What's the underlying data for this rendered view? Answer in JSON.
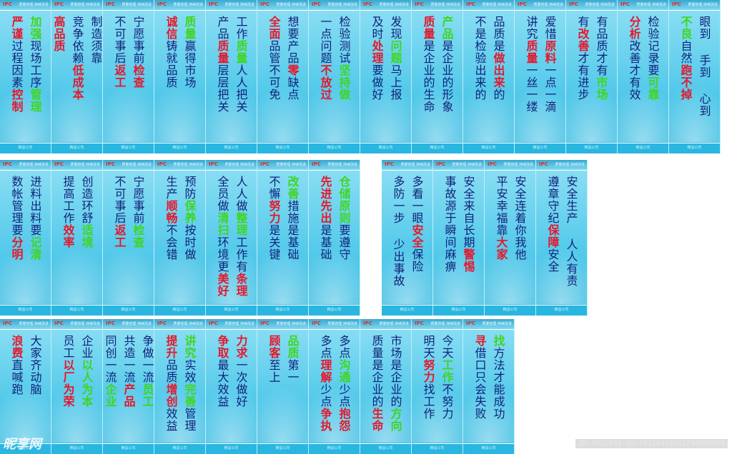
{
  "logo_text": "IPC",
  "header_tag": "质量管理 持续改进",
  "footer_text": "精益公司",
  "colors": {
    "panel_top": "#8fe0f4",
    "panel_bottom": "#3fbde2",
    "text": "#13217a",
    "red": "#e6172c",
    "green": "#3fd61e"
  },
  "rows": [
    {
      "panels": [
        {
          "cols": [
            [
              [
                "加强",
                "g"
              ],
              [
                "现场工序",
                ""
              ],
              [
                "管理",
                "g"
              ]
            ],
            [
              [
                "严谨",
                "r"
              ],
              [
                "过程因素",
                ""
              ],
              [
                "控制",
                "r"
              ]
            ]
          ]
        },
        {
          "cols": [
            [
              [
                "制造须靠",
                ""
              ]
            ],
            [
              [
                "竞争依赖",
                ""
              ],
              [
                "低成本",
                "r"
              ]
            ],
            [
              [
                "",
                ""
              ],
              [
                "高品质",
                "r"
              ]
            ]
          ]
        },
        {
          "cols": [
            [
              [
                "宁愿事前",
                ""
              ],
              [
                "检查",
                "r"
              ]
            ],
            [
              [
                "不可事后",
                ""
              ],
              [
                "返工",
                "r"
              ]
            ]
          ]
        },
        {
          "cols": [
            [
              [
                "质量",
                "g"
              ],
              [
                "赢得市场",
                ""
              ]
            ],
            [
              [
                "诚信",
                "r"
              ],
              [
                "铸就品质",
                ""
              ]
            ]
          ]
        },
        {
          "cols": [
            [
              [
                "工作",
                ""
              ],
              [
                "质量",
                "g"
              ],
              [
                "人人把关",
                ""
              ]
            ],
            [
              [
                "产品",
                ""
              ],
              [
                "质量",
                "r"
              ],
              [
                "层层把关",
                ""
              ]
            ]
          ]
        },
        {
          "cols": [
            [
              [
                "想要产品",
                ""
              ],
              [
                "零",
                "r"
              ],
              [
                "缺点",
                ""
              ]
            ],
            [
              [
                "全面",
                "r"
              ],
              [
                "品管不可免",
                ""
              ]
            ]
          ]
        },
        {
          "cols": [
            [
              [
                "检验测试",
                ""
              ],
              [
                "坚持做",
                "g"
              ]
            ],
            [
              [
                "一点问题",
                ""
              ],
              [
                "不放过",
                "r"
              ]
            ]
          ]
        },
        {
          "cols": [
            [
              [
                "发现",
                ""
              ],
              [
                "问题",
                "g"
              ],
              [
                "马上报",
                ""
              ]
            ],
            [
              [
                "及时",
                ""
              ],
              [
                "处理",
                "r"
              ],
              [
                "要做好",
                ""
              ]
            ]
          ]
        },
        {
          "cols": [
            [
              [
                "产品",
                "g"
              ],
              [
                "是企业的形象",
                ""
              ]
            ],
            [
              [
                "质量",
                "r"
              ],
              [
                "是企业的生命",
                ""
              ]
            ]
          ]
        },
        {
          "cols": [
            [
              [
                "品质是",
                ""
              ],
              [
                "做出来",
                "r"
              ],
              [
                "的",
                ""
              ]
            ],
            [
              [
                "不是检验出来的",
                ""
              ]
            ]
          ]
        },
        {
          "cols": [
            [
              [
                "爱惜",
                ""
              ],
              [
                "原料",
                "r"
              ],
              [
                "一点一滴",
                ""
              ]
            ],
            [
              [
                "讲究",
                ""
              ],
              [
                "质量",
                "r"
              ],
              [
                "一丝一缕",
                ""
              ]
            ]
          ]
        },
        {
          "cols": [
            [
              [
                "有品质才有",
                ""
              ],
              [
                "市场",
                "g"
              ]
            ],
            [
              [
                "有",
                ""
              ],
              [
                "改善",
                "r"
              ],
              [
                "才有进步",
                ""
              ]
            ]
          ]
        },
        {
          "cols": [
            [
              [
                "检验记录要",
                ""
              ],
              [
                "可靠",
                "g"
              ]
            ],
            [
              [
                "分析",
                "r"
              ],
              [
                "改善才有效",
                ""
              ]
            ]
          ]
        },
        {
          "cols": [
            [
              [
                "眼到 手到 心到",
                ""
              ]
            ],
            [
              [
                "不良",
                "g"
              ],
              [
                "自然",
                ""
              ],
              [
                "跑不掉",
                "r"
              ]
            ]
          ]
        }
      ]
    },
    {
      "panels": [
        {
          "cols": [
            [
              [
                "进料出料要",
                ""
              ],
              [
                "记清",
                "g"
              ]
            ],
            [
              [
                "数帐管理要",
                ""
              ],
              [
                "分明",
                "r"
              ]
            ]
          ]
        },
        {
          "cols": [
            [
              [
                "创造环舒",
                ""
              ],
              [
                "适境",
                "g"
              ]
            ],
            [
              [
                "提高工作",
                ""
              ],
              [
                "效率",
                "r"
              ]
            ]
          ]
        },
        {
          "cols": [
            [
              [
                "宁愿事前",
                ""
              ],
              [
                "检查",
                "g"
              ]
            ],
            [
              [
                "不可事后",
                ""
              ],
              [
                "返工",
                "r"
              ]
            ]
          ]
        },
        {
          "cols": [
            [
              [
                "预防",
                ""
              ],
              [
                "保养",
                "g"
              ],
              [
                "按时做",
                ""
              ]
            ],
            [
              [
                "生产",
                ""
              ],
              [
                "顺畅",
                "r"
              ],
              [
                "不会错",
                ""
              ]
            ]
          ]
        },
        {
          "cols": [
            [
              [
                "人人做",
                ""
              ],
              [
                "整理",
                "g"
              ],
              [
                "工作有",
                ""
              ],
              [
                "条理",
                "r"
              ]
            ],
            [
              [
                "全员做",
                ""
              ],
              [
                "清扫",
                "g"
              ],
              [
                "环境更",
                ""
              ],
              [
                "美好",
                "r"
              ]
            ]
          ]
        },
        {
          "cols": [
            [
              [
                "改善",
                "g"
              ],
              [
                "措施是基础",
                ""
              ]
            ],
            [
              [
                "不懈",
                ""
              ],
              [
                "努力",
                "r"
              ],
              [
                "是关键",
                ""
              ]
            ]
          ]
        },
        {
          "cols": [
            [
              [
                "仓储",
                "g"
              ],
              [
                "原则",
                "g"
              ],
              [
                "要遵守",
                ""
              ]
            ],
            [
              [
                "先进先出",
                "r"
              ],
              [
                "是基础",
                ""
              ]
            ]
          ]
        }
      ]
    },
    {
      "panels": [
        {
          "cols": [
            [
              [
                "多看一眼",
                ""
              ],
              [
                "安全",
                "r"
              ],
              [
                "保险",
                ""
              ]
            ],
            [
              [
                "多防一步 少出事故",
                ""
              ]
            ]
          ]
        },
        {
          "cols": [
            [
              [
                "安全来自长期",
                ""
              ],
              [
                "警惕",
                "r"
              ]
            ],
            [
              [
                "事故源于瞬间麻痹",
                ""
              ]
            ]
          ]
        },
        {
          "cols": [
            [
              [
                "安全连着你我他",
                ""
              ]
            ],
            [
              [
                "平安幸福靠",
                ""
              ],
              [
                "大家",
                "r"
              ]
            ]
          ]
        },
        {
          "cols": [
            [
              [
                "安全生产 人人有责",
                ""
              ]
            ],
            [
              [
                "遵章守纪",
                ""
              ],
              [
                "保障",
                "r"
              ],
              [
                "安全",
                ""
              ]
            ]
          ]
        }
      ]
    },
    {
      "panels": [
        {
          "cols": [
            [
              [
                "大家齐动脑",
                ""
              ]
            ],
            [
              [
                "浪费",
                "r"
              ],
              [
                "直喊跑",
                ""
              ]
            ]
          ]
        },
        {
          "cols": [
            [
              [
                "企业",
                ""
              ],
              [
                "以人为本",
                "g"
              ]
            ],
            [
              [
                "员工",
                ""
              ],
              [
                "以厂为荣",
                "r"
              ]
            ]
          ]
        },
        {
          "cols": [
            [
              [
                "争做一流",
                ""
              ],
              [
                "员工",
                "g"
              ]
            ],
            [
              [
                "共造一流",
                ""
              ],
              [
                "产品",
                "r"
              ]
            ],
            [
              [
                "同创一流",
                ""
              ],
              [
                "企业",
                "g"
              ]
            ]
          ]
        },
        {
          "cols": [
            [
              [
                "讲究",
                "g"
              ],
              [
                "实效",
                ""
              ],
              [
                "完善",
                "g"
              ],
              [
                "管理",
                ""
              ]
            ],
            [
              [
                "提升",
                "r"
              ],
              [
                "品质",
                ""
              ],
              [
                "增创",
                "r"
              ],
              [
                "效益",
                ""
              ]
            ]
          ]
        },
        {
          "cols": [
            [
              [
                "力求",
                "r"
              ],
              [
                "一次做好",
                ""
              ]
            ],
            [
              [
                "争取",
                "r"
              ],
              [
                "最大效益",
                ""
              ]
            ]
          ]
        },
        {
          "cols": [
            [
              [
                "品质",
                "g"
              ],
              [
                "第一",
                ""
              ]
            ],
            [
              [
                "顾客",
                "r"
              ],
              [
                "至上",
                ""
              ]
            ]
          ]
        },
        {
          "cols": [
            [
              [
                "多点",
                ""
              ],
              [
                "沟通",
                "g"
              ],
              [
                "少点",
                ""
              ],
              [
                "抱怨",
                "r"
              ]
            ],
            [
              [
                "多点",
                ""
              ],
              [
                "理解",
                "r"
              ],
              [
                "少点",
                ""
              ],
              [
                "争执",
                "r"
              ]
            ]
          ]
        },
        {
          "cols": [
            [
              [
                "市场是企业的",
                ""
              ],
              [
                "方向",
                "g"
              ]
            ],
            [
              [
                "质量是企业的",
                ""
              ],
              [
                "生命",
                "r"
              ]
            ]
          ]
        },
        {
          "cols": [
            [
              [
                "今天",
                ""
              ],
              [
                "工作",
                "g"
              ],
              [
                "不努力",
                ""
              ]
            ],
            [
              [
                "明天",
                ""
              ],
              [
                "努力",
                "r"
              ],
              [
                "找工作",
                ""
              ]
            ]
          ]
        },
        {
          "cols": [
            [
              [
                "找",
                "g"
              ],
              [
                "方法才能成功",
                ""
              ]
            ],
            [
              [
                "寻",
                "r"
              ],
              [
                "借口只会失败",
                ""
              ]
            ]
          ]
        }
      ]
    }
  ],
  "watermark": "昵享网",
  "watermark_url": "www.nipic.com",
  "image_id": "ID:5922093 NO:20110419162748960000"
}
